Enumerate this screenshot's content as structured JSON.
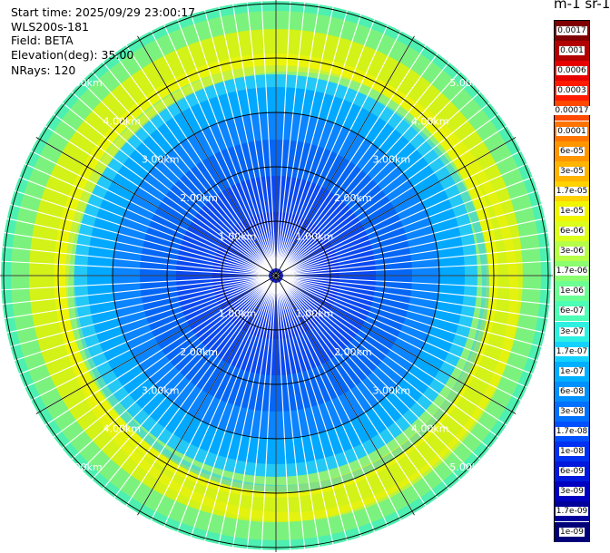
{
  "header": {
    "start_time": "Start time: 2025/09/29 23:00:17",
    "instrument": "WLS200s-181",
    "field": "Field: BETA",
    "elevation": "Elevation(deg): 35.00",
    "nrays": "NRays: 120"
  },
  "colorbar": {
    "title": "m-1 sr-1",
    "ticks": [
      "0.0017",
      "0.001",
      "0.0006",
      "0.0003",
      "0.00017",
      "0.0001",
      "6e-05",
      "3e-05",
      "1.7e-05",
      "1e-05",
      "6e-06",
      "3e-06",
      "1.7e-06",
      "1e-06",
      "6e-07",
      "3e-07",
      "1.7e-07",
      "1e-07",
      "6e-08",
      "3e-08",
      "1.7e-08",
      "1e-08",
      "6e-09",
      "3e-09",
      "1.7e-09",
      "1e-09"
    ],
    "colors": [
      "#7f0000",
      "#b20000",
      "#e60000",
      "#ff1a00",
      "#ff4800",
      "#ff7400",
      "#ff9600",
      "#ffb400",
      "#ffd200",
      "#f0f500",
      "#dcff1c",
      "#b6ff48",
      "#8cff70",
      "#6cff92",
      "#4cffb4",
      "#2ef0e0",
      "#14d2ff",
      "#00b0ff",
      "#0090ff",
      "#0070ff",
      "#0050ff",
      "#0030f0",
      "#0018dc",
      "#0000c0",
      "#00009a",
      "#000078"
    ]
  },
  "range_labels": {
    "ring1": "1.00km",
    "ring2": "2.00km",
    "ring3": "3.00km",
    "ring4": "4.00km",
    "ring5": "5.00km"
  }
}
